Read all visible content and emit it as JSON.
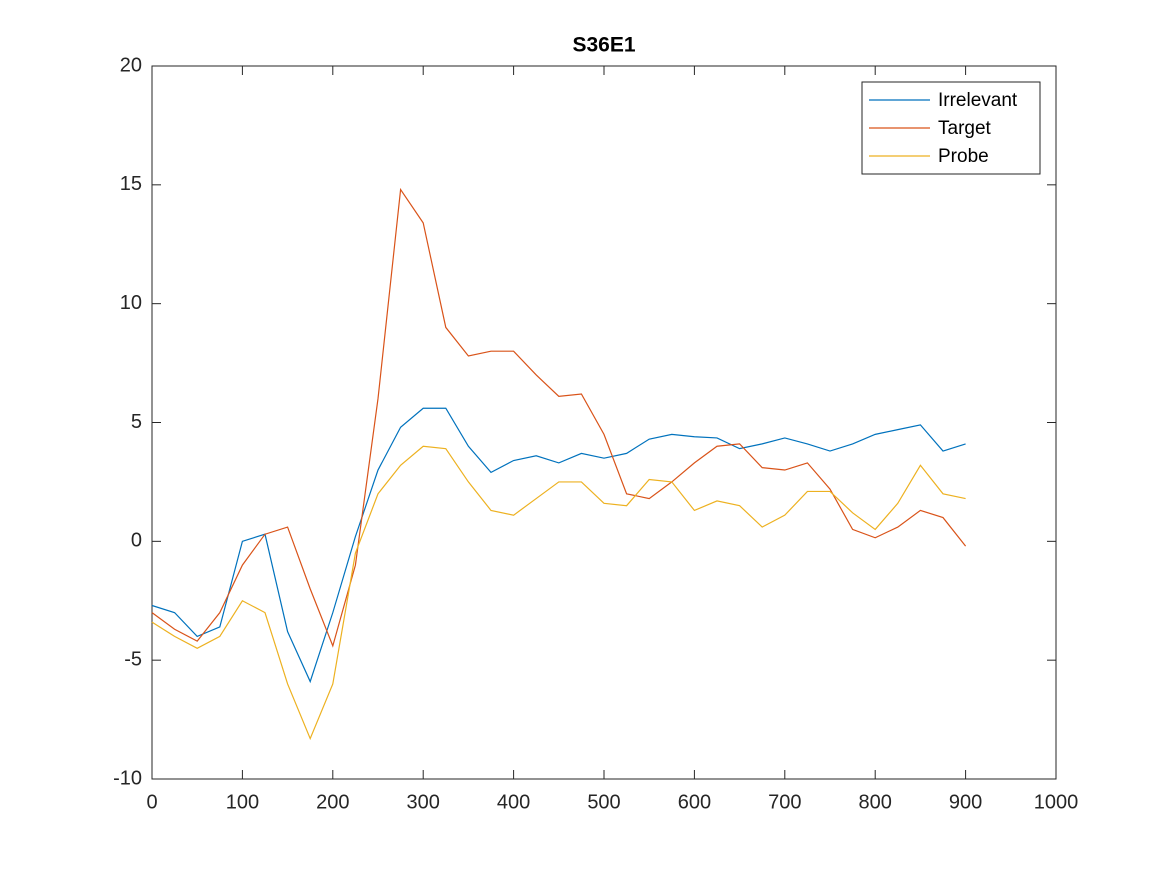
{
  "chart_data": {
    "type": "line",
    "title": "S36E1",
    "x": [
      0,
      25,
      50,
      75,
      100,
      125,
      150,
      175,
      200,
      225,
      250,
      275,
      300,
      325,
      350,
      375,
      400,
      425,
      450,
      475,
      500,
      525,
      550,
      575,
      600,
      625,
      650,
      675,
      700,
      725,
      750,
      775,
      800,
      825,
      850,
      875,
      900
    ],
    "series": [
      {
        "name": "Irrelevant",
        "color": "#0072bd",
        "values": [
          -2.7,
          -3.0,
          -4.0,
          -3.6,
          0.0,
          0.3,
          -3.8,
          -5.9,
          -3.0,
          0.2,
          3.0,
          4.8,
          5.6,
          5.6,
          4.0,
          2.9,
          3.4,
          3.6,
          3.3,
          3.7,
          3.5,
          3.7,
          4.3,
          4.5,
          4.4,
          4.35,
          3.9,
          4.1,
          4.35,
          4.1,
          3.8,
          4.1,
          4.5,
          4.7,
          4.9,
          3.8,
          4.1
        ]
      },
      {
        "name": "Target",
        "color": "#d95319",
        "values": [
          -3.0,
          -3.7,
          -4.2,
          -3.0,
          -1.0,
          0.3,
          0.6,
          -2.0,
          -4.4,
          -1.0,
          6.0,
          14.8,
          13.4,
          9.0,
          7.8,
          8.0,
          8.0,
          7.0,
          6.1,
          6.2,
          4.5,
          2.0,
          1.8,
          2.5,
          3.3,
          4.0,
          4.1,
          3.1,
          3.0,
          3.3,
          2.2,
          0.5,
          0.15,
          0.6,
          1.3,
          1.0,
          -0.2
        ]
      },
      {
        "name": "Probe",
        "color": "#edb120",
        "values": [
          -3.4,
          -4.0,
          -4.5,
          -4.0,
          -2.5,
          -3.0,
          -6.0,
          -8.3,
          -6.0,
          -0.5,
          2.0,
          3.2,
          4.0,
          3.9,
          2.5,
          1.3,
          1.1,
          1.8,
          2.5,
          2.5,
          1.6,
          1.5,
          2.6,
          2.5,
          1.3,
          1.7,
          1.5,
          0.6,
          1.1,
          2.1,
          2.1,
          1.2,
          0.5,
          1.6,
          3.2,
          2.0,
          1.8
        ]
      }
    ],
    "xlim": [
      0,
      1000
    ],
    "xticks": [
      0,
      100,
      200,
      300,
      400,
      500,
      600,
      700,
      800,
      900,
      1000
    ],
    "ylim": [
      -10,
      20
    ],
    "yticks": [
      -10,
      -5,
      0,
      5,
      10,
      15,
      20
    ],
    "legend": "northeast"
  }
}
